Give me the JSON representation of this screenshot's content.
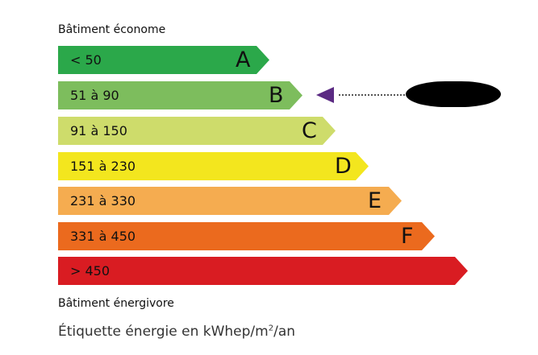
{
  "top_label": "Bâtiment économe",
  "bottom_label": "Bâtiment énergivore",
  "footer": {
    "text": "Étiquette énergie en kWhep/m",
    "sup": "2",
    "suffix": "/an"
  },
  "classes": [
    {
      "letter": "A",
      "range": "< 50",
      "color": "#2ba84a"
    },
    {
      "letter": "B",
      "range": "51 à 90",
      "color": "#7dbd5d"
    },
    {
      "letter": "C",
      "range": "91 à 150",
      "color": "#cedc6b"
    },
    {
      "letter": "D",
      "range": "151 à 230",
      "color": "#f3e61e"
    },
    {
      "letter": "E",
      "range": "231 à 330",
      "color": "#f5ac50"
    },
    {
      "letter": "F",
      "range": "331 à 450",
      "color": "#eb6a1e"
    },
    {
      "letter": "",
      "range": "> 450",
      "color": "#d91c22"
    }
  ],
  "current_class": "B",
  "marker_color": "#5b2a83"
}
